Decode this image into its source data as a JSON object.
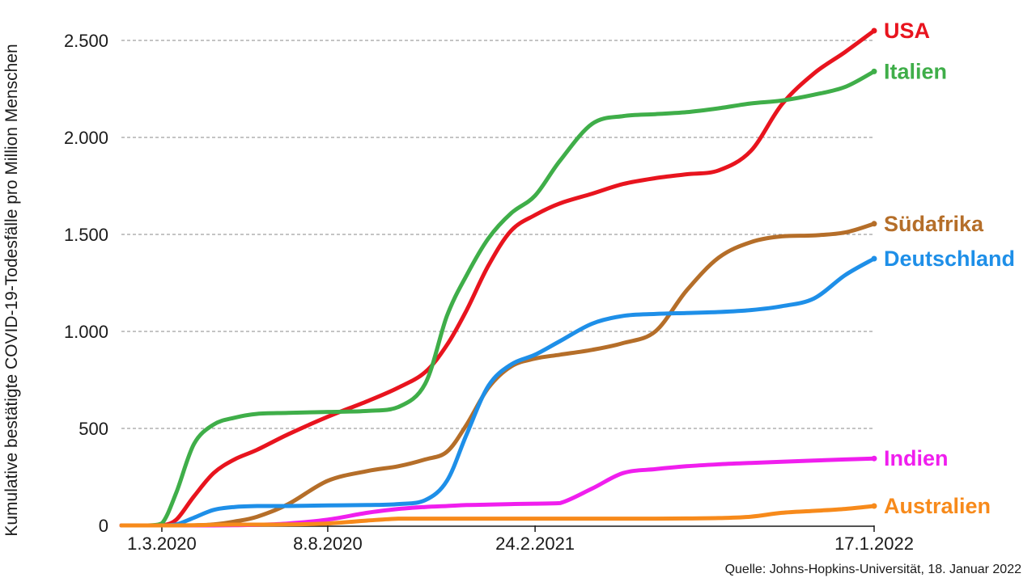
{
  "chart_data": {
    "type": "line",
    "title": "",
    "ylabel": "Kumulative bestätigte COVID-19-Todesfälle pro Million Menschen",
    "xlabel": "",
    "ylim": [
      0,
      2500
    ],
    "y_ticks": [
      0,
      500,
      1000,
      1500,
      2000,
      2500
    ],
    "y_tick_labels": [
      "0",
      "500",
      "1.000",
      "1.500",
      "2.000",
      "2.500"
    ],
    "x_ticks": [
      "2020-03-01",
      "2020-08-08",
      "2021-02-24",
      "2022-01-17"
    ],
    "x_tick_labels": [
      "1.3.2020",
      "8.8.2020",
      "24.2.2021",
      "17.1.2022"
    ],
    "x_range": [
      "2020-01-22",
      "2022-01-17"
    ],
    "grid": "horizontal dashed",
    "x": [
      "2020-01-22",
      "2020-02-15",
      "2020-03-01",
      "2020-03-15",
      "2020-04-01",
      "2020-04-20",
      "2020-05-10",
      "2020-06-01",
      "2020-07-01",
      "2020-08-08",
      "2020-09-15",
      "2020-10-15",
      "2020-11-10",
      "2020-12-01",
      "2020-12-20",
      "2021-01-10",
      "2021-02-01",
      "2021-02-24",
      "2021-03-20",
      "2021-04-20",
      "2021-05-20",
      "2021-06-20",
      "2021-07-20",
      "2021-08-20",
      "2021-09-20",
      "2021-10-20",
      "2021-11-20",
      "2021-12-20",
      "2022-01-17"
    ],
    "series": [
      {
        "name": "USA",
        "color": "#e8141e",
        "values": [
          0,
          0,
          0,
          30,
          150,
          270,
          340,
          390,
          470,
          560,
          640,
          710,
          790,
          930,
          1110,
          1340,
          1520,
          1600,
          1660,
          1710,
          1760,
          1790,
          1810,
          1830,
          1930,
          2170,
          2330,
          2440,
          2550
        ]
      },
      {
        "name": "Italien",
        "color": "#3fae49",
        "values": [
          0,
          0,
          10,
          170,
          420,
          520,
          555,
          575,
          580,
          585,
          590,
          610,
          730,
          1080,
          1290,
          1480,
          1610,
          1700,
          1880,
          2070,
          2110,
          2120,
          2130,
          2150,
          2175,
          2190,
          2220,
          2260,
          2340
        ]
      },
      {
        "name": "Südafrika",
        "color": "#b56e29",
        "values": [
          0,
          0,
          0,
          0,
          0,
          5,
          20,
          45,
          110,
          230,
          280,
          305,
          340,
          380,
          520,
          710,
          820,
          860,
          880,
          905,
          940,
          1000,
          1210,
          1380,
          1460,
          1490,
          1495,
          1510,
          1555
        ]
      },
      {
        "name": "Deutschland",
        "color": "#1e8fe8",
        "values": [
          0,
          0,
          0,
          5,
          40,
          80,
          95,
          100,
          100,
          103,
          105,
          110,
          130,
          230,
          470,
          720,
          830,
          880,
          950,
          1040,
          1080,
          1090,
          1095,
          1100,
          1110,
          1130,
          1170,
          1290,
          1375
        ]
      },
      {
        "name": "Indien",
        "color": "#f01eee",
        "values": [
          0,
          0,
          0,
          0,
          0,
          0,
          1,
          3,
          10,
          30,
          65,
          85,
          95,
          100,
          105,
          107,
          110,
          112,
          115,
          190,
          270,
          290,
          305,
          315,
          322,
          328,
          334,
          340,
          345
        ]
      },
      {
        "name": "Australien",
        "color": "#f78a1b",
        "values": [
          0,
          0,
          0,
          0,
          1,
          3,
          4,
          4,
          5,
          10,
          25,
          35,
          35,
          35,
          35,
          35,
          35,
          35,
          35,
          35,
          35,
          35,
          36,
          38,
          45,
          65,
          75,
          85,
          100
        ]
      }
    ]
  },
  "source": "Quelle:  Johns-Hopkins-Universität, 18. Januar 2022"
}
